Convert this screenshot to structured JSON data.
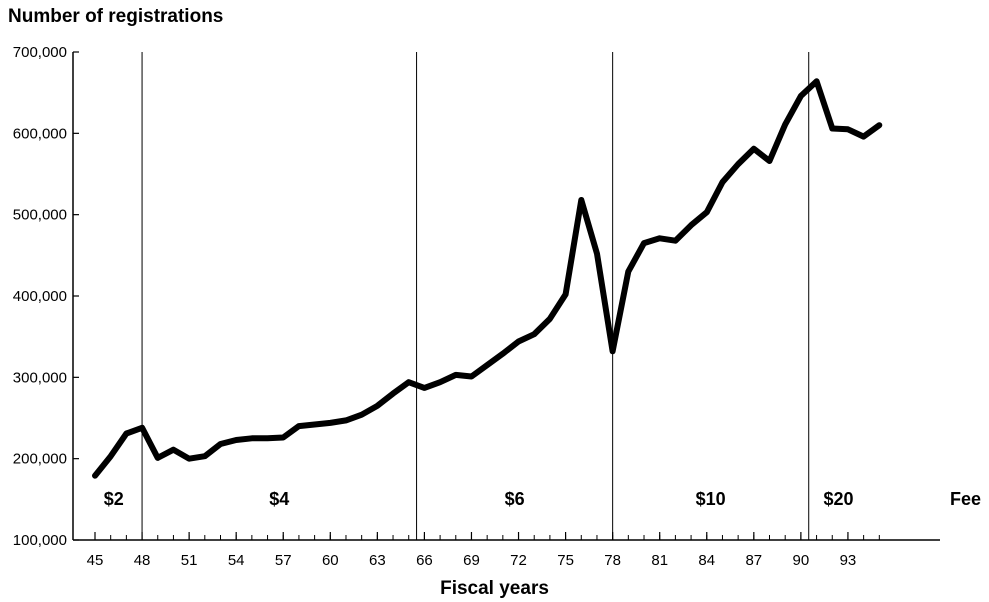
{
  "chart_data": {
    "type": "line",
    "ylabel": "Number of registrations",
    "xlabel": "Fiscal years",
    "ylim": [
      100000,
      700000
    ],
    "xlim": [
      45,
      96
    ],
    "y_ticks": [
      100000,
      200000,
      300000,
      400000,
      500000,
      600000,
      700000
    ],
    "y_tick_labels": [
      "100,000",
      "200,000",
      "300,000",
      "400,000",
      "500,000",
      "600,000",
      "700,000"
    ],
    "x_ticks": [
      45,
      48,
      51,
      54,
      57,
      60,
      63,
      66,
      69,
      72,
      75,
      78,
      81,
      84,
      87,
      90,
      93
    ],
    "x_tick_labels": [
      "45",
      "48",
      "51",
      "54",
      "57",
      "60",
      "63",
      "66",
      "69",
      "72",
      "75",
      "78",
      "81",
      "84",
      "87",
      "90",
      "93"
    ],
    "fee_label": "Fee",
    "fee_periods": [
      {
        "label": "$2",
        "start": 45,
        "end": 48
      },
      {
        "label": "$4",
        "start": 48,
        "end": 65.5
      },
      {
        "label": "$6",
        "start": 65.5,
        "end": 78
      },
      {
        "label": "$10",
        "start": 78,
        "end": 90.5
      },
      {
        "label": "$20",
        "start": 90.5,
        "end": 96
      }
    ],
    "dividers": [
      48,
      65.5,
      78,
      90.5
    ],
    "series": [
      {
        "color": "#000000",
        "x": [
          45,
          46,
          47,
          48,
          49,
          50,
          51,
          52,
          53,
          54,
          55,
          56,
          57,
          58,
          59,
          60,
          61,
          62,
          63,
          64,
          65,
          66,
          67,
          68,
          69,
          70,
          71,
          72,
          73,
          74,
          75,
          76,
          77,
          78,
          79,
          80,
          81,
          82,
          83,
          84,
          85,
          86,
          87,
          88,
          89,
          90,
          91,
          92,
          93,
          94,
          95
        ],
        "values": [
          179000,
          203000,
          231000,
          238000,
          201000,
          211000,
          200000,
          203000,
          218000,
          223000,
          225000,
          225000,
          226000,
          240000,
          242000,
          244000,
          247000,
          254000,
          265000,
          280000,
          294000,
          287000,
          294000,
          303000,
          301000,
          315000,
          329000,
          344000,
          353000,
          372000,
          402000,
          518000,
          452000,
          332000,
          430000,
          465000,
          471000,
          468000,
          487000,
          503000,
          540000,
          562000,
          581000,
          566000,
          611000,
          646000,
          664000,
          606000,
          605000,
          596000,
          610000
        ]
      }
    ]
  }
}
